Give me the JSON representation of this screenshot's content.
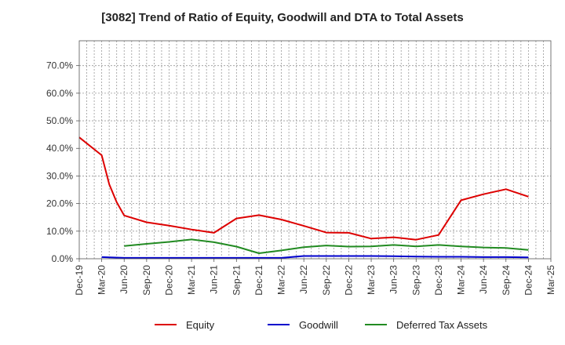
{
  "chart_data": {
    "type": "line",
    "title": "[3082]  Trend of Ratio of Equity, Goodwill and DTA to Total Assets",
    "xlabel": "",
    "ylabel": "",
    "x_ticks": [
      "Dec-19",
      "Mar-20",
      "Jun-20",
      "Sep-20",
      "Dec-20",
      "Mar-21",
      "Jun-21",
      "Sep-21",
      "Dec-21",
      "Mar-22",
      "Jun-22",
      "Sep-22",
      "Dec-22",
      "Mar-23",
      "Jun-23",
      "Sep-23",
      "Dec-23",
      "Mar-24",
      "Jun-24",
      "Sep-24",
      "Dec-24",
      "Mar-25"
    ],
    "y_ticks": [
      "0.0%",
      "10.0%",
      "20.0%",
      "30.0%",
      "40.0%",
      "50.0%",
      "60.0%",
      "70.0%"
    ],
    "ylim": [
      0,
      79
    ],
    "grid": true,
    "legend_position": "bottom",
    "series": [
      {
        "name": "Equity",
        "color": "#dd0000",
        "points": [
          [
            "Dec-19",
            44.0
          ],
          [
            "Mar-20",
            37.5
          ],
          [
            "Apr-20",
            27.0
          ],
          [
            "May-20",
            20.5
          ],
          [
            "Jun-20",
            15.7
          ],
          [
            "Sep-20",
            13.2
          ],
          [
            "Dec-20",
            12.0
          ],
          [
            "Mar-21",
            10.6
          ],
          [
            "Jun-21",
            9.4
          ],
          [
            "Sep-21",
            14.6
          ],
          [
            "Dec-21",
            15.8
          ],
          [
            "Mar-22",
            14.2
          ],
          [
            "Jun-22",
            11.9
          ],
          [
            "Sep-22",
            9.5
          ],
          [
            "Dec-22",
            9.4
          ],
          [
            "Mar-23",
            7.3
          ],
          [
            "Jun-23",
            7.8
          ],
          [
            "Sep-23",
            6.9
          ],
          [
            "Dec-23",
            8.6
          ],
          [
            "Mar-24",
            21.2
          ],
          [
            "Jun-24",
            23.4
          ],
          [
            "Sep-24",
            25.2
          ],
          [
            "Dec-24",
            22.5
          ]
        ]
      },
      {
        "name": "Goodwill",
        "color": "#0000cc",
        "points": [
          [
            "Mar-20",
            0.6
          ],
          [
            "Jun-20",
            0.3
          ],
          [
            "Sep-20",
            0.3
          ],
          [
            "Dec-20",
            0.3
          ],
          [
            "Mar-21",
            0.3
          ],
          [
            "Jun-21",
            0.3
          ],
          [
            "Sep-21",
            0.3
          ],
          [
            "Dec-21",
            0.3
          ],
          [
            "Mar-22",
            0.3
          ],
          [
            "Jun-22",
            1.0
          ],
          [
            "Sep-22",
            1.0
          ],
          [
            "Dec-22",
            1.0
          ],
          [
            "Mar-23",
            1.0
          ],
          [
            "Jun-23",
            0.9
          ],
          [
            "Sep-23",
            0.8
          ],
          [
            "Dec-23",
            0.7
          ],
          [
            "Mar-24",
            0.7
          ],
          [
            "Jun-24",
            0.6
          ],
          [
            "Sep-24",
            0.6
          ],
          [
            "Dec-24",
            0.5
          ]
        ]
      },
      {
        "name": "Deferred Tax Assets",
        "color": "#228b22",
        "points": [
          [
            "Jun-20",
            4.6
          ],
          [
            "Sep-20",
            5.4
          ],
          [
            "Dec-20",
            6.1
          ],
          [
            "Mar-21",
            7.0
          ],
          [
            "Jun-21",
            6.0
          ],
          [
            "Sep-21",
            4.4
          ],
          [
            "Dec-21",
            2.0
          ],
          [
            "Mar-22",
            3.0
          ],
          [
            "Jun-22",
            4.2
          ],
          [
            "Sep-22",
            4.8
          ],
          [
            "Dec-22",
            4.4
          ],
          [
            "Mar-23",
            4.5
          ],
          [
            "Jun-23",
            5.0
          ],
          [
            "Sep-23",
            4.5
          ],
          [
            "Dec-23",
            5.0
          ],
          [
            "Mar-24",
            4.5
          ],
          [
            "Jun-24",
            4.1
          ],
          [
            "Sep-24",
            3.9
          ],
          [
            "Dec-24",
            3.2
          ]
        ]
      }
    ]
  }
}
